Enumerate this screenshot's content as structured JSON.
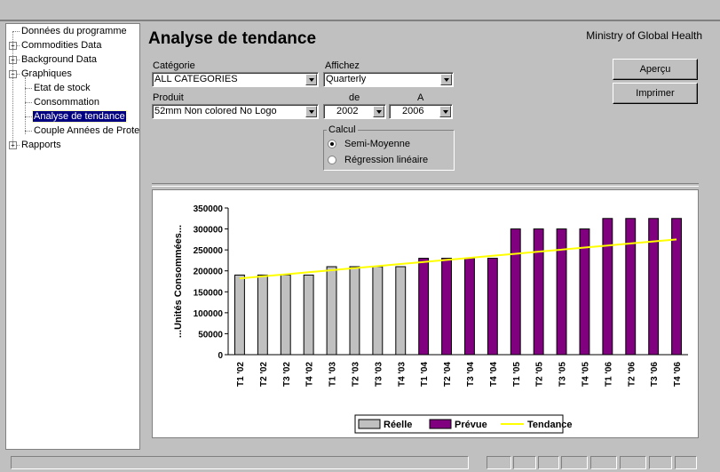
{
  "tree": {
    "items": [
      {
        "label": "Données du programme",
        "level": 0,
        "expander": ""
      },
      {
        "label": "Commodities Data",
        "level": 0,
        "expander": "+"
      },
      {
        "label": "Background Data",
        "level": 0,
        "expander": "+"
      },
      {
        "label": "Graphiques",
        "level": 0,
        "expander": "-"
      },
      {
        "label": "Etat de stock",
        "level": 1,
        "expander": ""
      },
      {
        "label": "Consommation",
        "level": 1,
        "expander": ""
      },
      {
        "label": "Analyse de tendance",
        "level": 1,
        "expander": "",
        "selected": true
      },
      {
        "label": "Couple Années de Protec",
        "level": 1,
        "expander": ""
      },
      {
        "label": "Rapports",
        "level": 0,
        "expander": "+"
      }
    ]
  },
  "header": {
    "title": "Analyse de tendance",
    "organization": "Ministry of Global Health"
  },
  "filters": {
    "categorie_label": "Catégorie",
    "categorie_value": "ALL CATEGORIES",
    "affichez_label": "Affichez",
    "affichez_value": "Quarterly",
    "produit_label": "Produit",
    "produit_value": "52mm Non colored No Logo",
    "de_label": "de",
    "de_value": "2002",
    "a_label": "A",
    "a_value": "2006"
  },
  "calcul": {
    "label": "Calcul",
    "options": [
      {
        "label": "Semi-Moyenne",
        "selected": true
      },
      {
        "label": "Régression linéaire",
        "selected": false
      }
    ]
  },
  "buttons": {
    "apercu": "Aperçu",
    "imprimer": "Imprimer"
  },
  "chart_data": {
    "type": "bar",
    "ylabel": "...Unités Consommées...",
    "ylim": [
      0,
      350000
    ],
    "yticks": [
      "350000",
      "300000",
      "250000",
      "200000",
      "150000",
      "100000",
      "50000",
      "0"
    ],
    "categories": [
      "T1 '02",
      "T2 '02",
      "T3 '02",
      "T4 '02",
      "T1 '03",
      "T2 '03",
      "T3 '03",
      "T4 '03",
      "T1 '04",
      "T2 '04",
      "T3 '04",
      "T4 '04",
      "T1 '05",
      "T2 '05",
      "T3 '05",
      "T4 '05",
      "T1 '06",
      "T2 '06",
      "T3 '06",
      "T4 '06"
    ],
    "series": [
      {
        "name": "Réelle",
        "color": "#c0c0c0",
        "values": [
          190000,
          190000,
          190000,
          190000,
          210000,
          210000,
          210000,
          210000,
          null,
          null,
          null,
          null,
          null,
          null,
          null,
          null,
          null,
          null,
          null,
          null
        ]
      },
      {
        "name": "Prévue",
        "color": "#800080",
        "values": [
          null,
          null,
          null,
          null,
          null,
          null,
          null,
          null,
          230000,
          230000,
          230000,
          230000,
          300000,
          300000,
          300000,
          300000,
          325000,
          325000,
          325000,
          325000
        ]
      },
      {
        "name": "Tendance",
        "color": "#ffff00",
        "type": "line",
        "values": [
          182000,
          186900,
          191800,
          196700,
          201600,
          206500,
          211400,
          216300,
          221200,
          226100,
          231000,
          235900,
          240800,
          245700,
          250600,
          255500,
          260400,
          265300,
          270200,
          275000
        ]
      }
    ],
    "legend_position": "bottom"
  }
}
